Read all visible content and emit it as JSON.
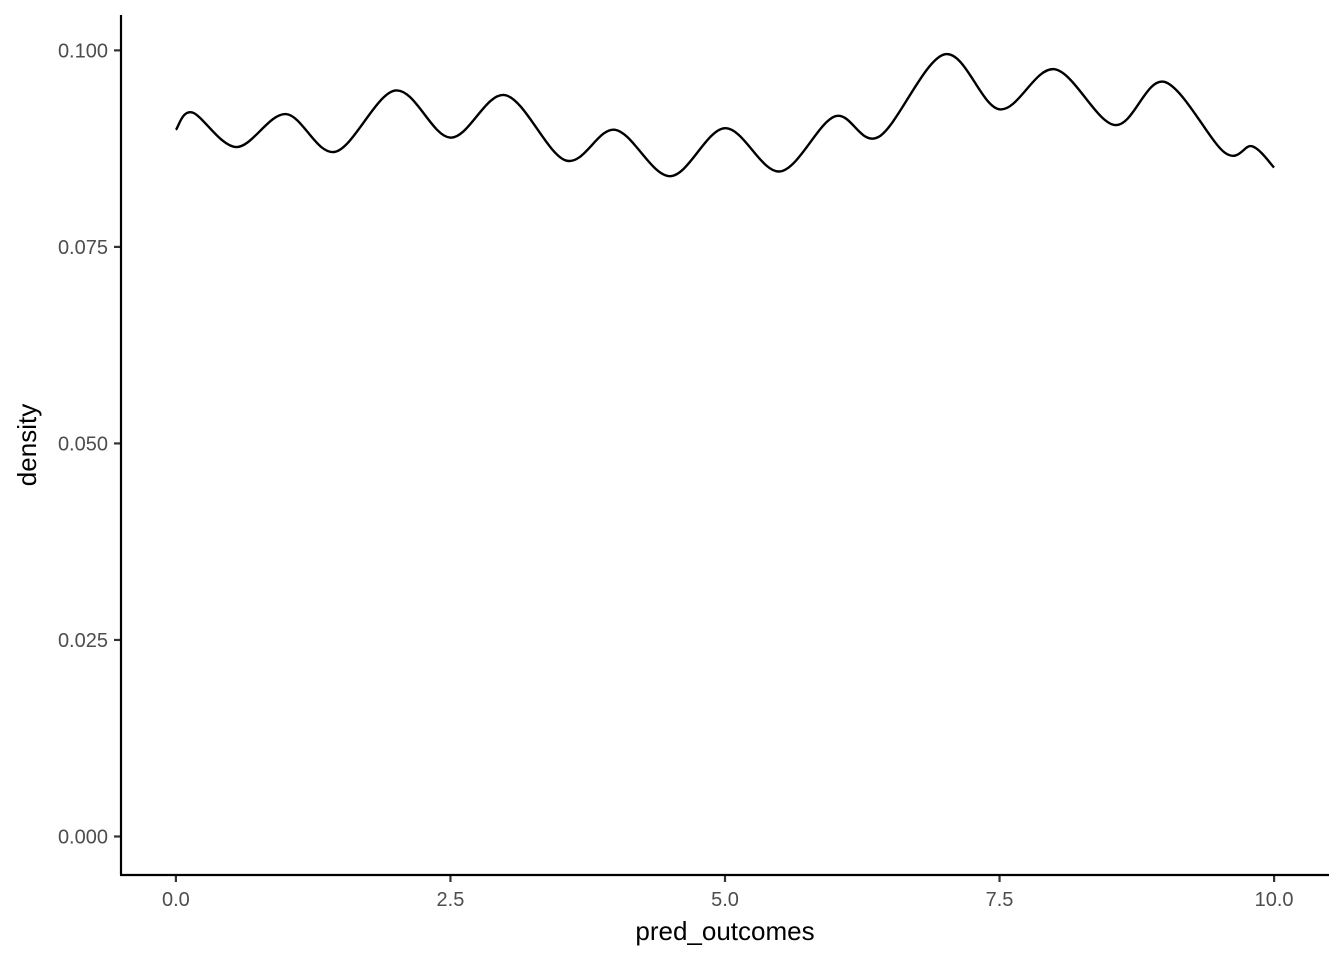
{
  "chart_data": {
    "type": "line",
    "title": "",
    "xlabel": "pred_outcomes",
    "ylabel": "density",
    "xlim": [
      -0.5,
      10.5
    ],
    "ylim": [
      -0.0049,
      0.1045
    ],
    "x_ticks": [
      0.0,
      2.5,
      5.0,
      7.5,
      10.0
    ],
    "x_tick_labels": [
      "0.0",
      "2.5",
      "5.0",
      "7.5",
      "10.0"
    ],
    "y_ticks": [
      0.0,
      0.025,
      0.05,
      0.075,
      0.1
    ],
    "y_tick_labels": [
      "0.000",
      "0.025",
      "0.050",
      "0.075",
      "0.100"
    ],
    "grid": false,
    "series": [
      {
        "color": "#000000",
        "x": [
          0.0,
          0.15,
          0.55,
          1.0,
          1.45,
          2.0,
          2.5,
          3.0,
          3.55,
          4.0,
          4.5,
          5.0,
          5.5,
          6.0,
          6.4,
          7.0,
          7.5,
          8.0,
          8.55,
          9.0,
          9.55,
          9.8,
          10.0
        ],
        "y": [
          0.0899,
          0.0921,
          0.0877,
          0.0919,
          0.0871,
          0.0949,
          0.0889,
          0.0943,
          0.086,
          0.0899,
          0.084,
          0.0901,
          0.0846,
          0.0916,
          0.089,
          0.0995,
          0.0925,
          0.0976,
          0.0905,
          0.096,
          0.087,
          0.0878,
          0.0851
        ]
      }
    ]
  }
}
